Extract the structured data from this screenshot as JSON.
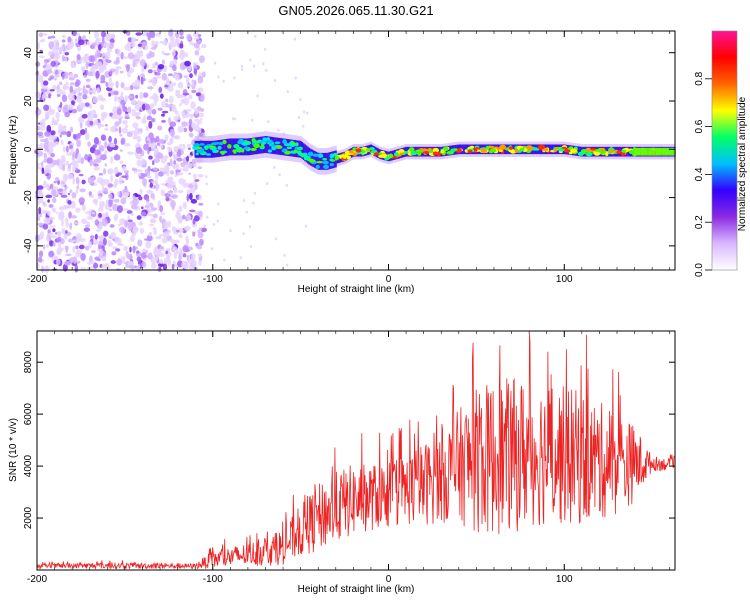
{
  "title": "GN05.2026.065.11.30.G21",
  "chart_data": [
    {
      "type": "heatmap",
      "title": "GN05.2026.065.11.30.G21",
      "xlabel": "Height of straight line (km)",
      "ylabel": "Frequency (Hz)",
      "xlim": [
        -200,
        163
      ],
      "ylim": [
        -50,
        49
      ],
      "xticks": [
        -200,
        -100,
        0,
        100
      ],
      "yticks": [
        -40,
        -20,
        0,
        20,
        40
      ],
      "colorbar": {
        "label": "Normalized spectral amplitude",
        "range": [
          0,
          1
        ],
        "ticks": [
          0,
          0.2,
          0.4,
          0.6,
          0.8
        ],
        "tick_labels": [
          "0.0",
          "0.2",
          "0.4",
          "0.6",
          "0.8"
        ],
        "colormap": [
          "#ffffff",
          "#d9b8ff",
          "#8a2be2",
          "#3300ff",
          "#00bfff",
          "#00ff66",
          "#ffff00",
          "#ff6600",
          "#ff0000",
          "#ff1493"
        ]
      },
      "ridge": {
        "x": [
          -110,
          -100,
          -90,
          -80,
          -70,
          -60,
          -50,
          -45,
          -40,
          -35,
          -30,
          -25,
          -20,
          -15,
          -10,
          -5,
          0,
          10,
          20,
          30,
          40,
          50,
          60,
          70,
          80,
          90,
          100,
          110,
          120,
          130,
          140,
          150,
          163
        ],
        "freq": [
          0,
          0,
          1,
          1,
          2,
          1,
          0,
          -3,
          -5,
          -5,
          -4,
          -3,
          -1,
          -1,
          0,
          -2,
          -3,
          -1,
          -1,
          -1,
          0,
          0,
          0,
          0,
          0,
          0,
          0,
          -1,
          -1,
          -1,
          -1,
          -1,
          -1
        ]
      }
    },
    {
      "type": "line",
      "xlabel": "Height of straight line (km)",
      "ylabel": "SNR (10 * v/v)",
      "xlim": [
        -200,
        163
      ],
      "ylim": [
        0,
        9200
      ],
      "xticks": [
        -200,
        -100,
        0,
        100
      ],
      "yticks": [
        2000,
        4000,
        6000,
        8000
      ],
      "color": "#ee2222",
      "envelope": {
        "x": [
          -200,
          -160,
          -110,
          -100,
          -90,
          -80,
          -70,
          -60,
          -50,
          -40,
          -30,
          -20,
          -10,
          0,
          10,
          20,
          30,
          40,
          50,
          60,
          70,
          80,
          90,
          100,
          110,
          120,
          130,
          140,
          150,
          163
        ],
        "center": [
          150,
          170,
          150,
          400,
          500,
          600,
          700,
          900,
          1500,
          2000,
          2400,
          2700,
          2800,
          2900,
          3100,
          3300,
          3600,
          4000,
          4200,
          4300,
          4400,
          4500,
          4500,
          4400,
          4300,
          4200,
          4100,
          4100,
          4100,
          4050
        ],
        "spread": [
          80,
          120,
          100,
          350,
          400,
          450,
          550,
          700,
          1000,
          1300,
          1400,
          1400,
          1300,
          1300,
          1400,
          1600,
          1800,
          2200,
          2800,
          3000,
          3000,
          2900,
          2800,
          2700,
          2600,
          2300,
          2000,
          1500,
          300,
          200
        ],
        "peak_max": 9100
      }
    }
  ]
}
